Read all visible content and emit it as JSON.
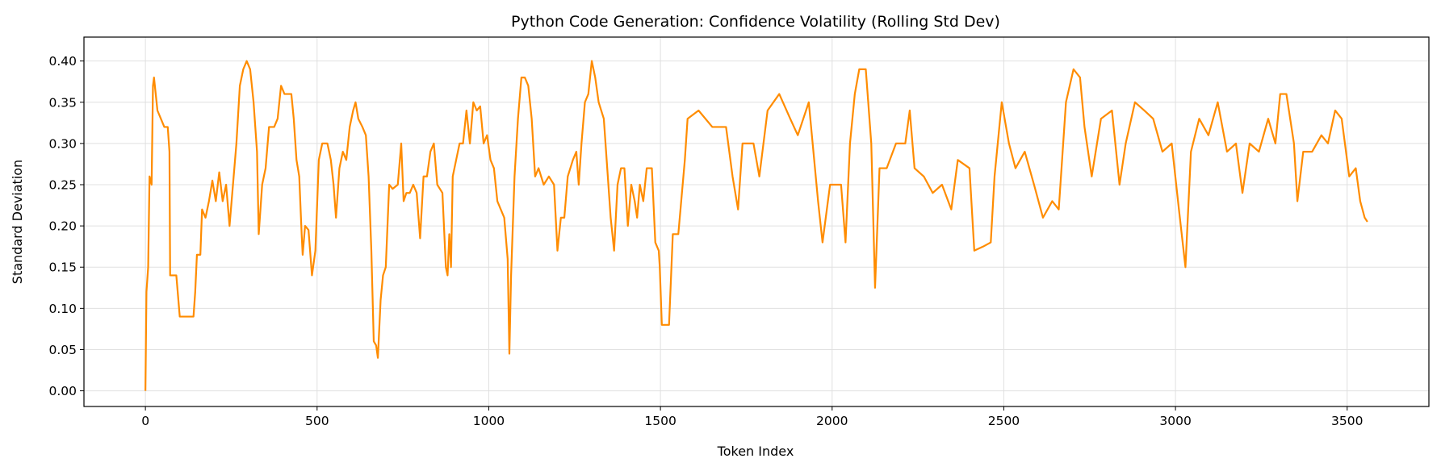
{
  "chart_data": {
    "type": "line",
    "title": "Python Code Generation: Confidence Volatility (Rolling Std Dev)",
    "x_label": "Token Index",
    "y_label": "Standard Deviation",
    "xlim": [
      -179,
      3738
    ],
    "ylim": [
      -0.019,
      0.429
    ],
    "xticks": [
      0,
      500,
      1000,
      1500,
      2000,
      2500,
      3000,
      3500
    ],
    "yticks": [
      {
        "value": 0,
        "label": "0.00"
      },
      {
        "value": 0.05,
        "label": "0.05"
      },
      {
        "value": 0.1,
        "label": "0.10"
      },
      {
        "value": 0.15,
        "label": "0.15"
      },
      {
        "value": 0.2,
        "label": "0.20"
      },
      {
        "value": 0.25,
        "label": "0.25"
      },
      {
        "value": 0.3,
        "label": "0.30"
      },
      {
        "value": 0.35,
        "label": "0.35"
      },
      {
        "value": 0.4,
        "label": "0.40"
      }
    ],
    "grid": true,
    "series": [
      {
        "color": "#ff8c00",
        "x": [
          0,
          3,
          8,
          12,
          18,
          22,
          25,
          35,
          45,
          55,
          65,
          70,
          72,
          90,
          95,
          100,
          140,
          145,
          150,
          160,
          165,
          175,
          185,
          195,
          205,
          215,
          225,
          235,
          245,
          255,
          265,
          275,
          285,
          295,
          305,
          315,
          325,
          330,
          340,
          350,
          360,
          375,
          385,
          395,
          405,
          415,
          425,
          432,
          440,
          448,
          455,
          458,
          465,
          475,
          485,
          495,
          505,
          515,
          530,
          540,
          548,
          555,
          565,
          575,
          585,
          595,
          605,
          612,
          620,
          632,
          642,
          650,
          658,
          665,
          672,
          677,
          685,
          692,
          700,
          710,
          720,
          735,
          745,
          752,
          760,
          770,
          780,
          790,
          800,
          810,
          820,
          830,
          840,
          850,
          865,
          875,
          880,
          885,
          890,
          895,
          905,
          915,
          925,
          935,
          945,
          955,
          965,
          975,
          985,
          995,
          1005,
          1015,
          1025,
          1035,
          1045,
          1055,
          1060,
          1065,
          1075,
          1085,
          1095,
          1105,
          1115,
          1125,
          1135,
          1145,
          1160,
          1175,
          1190,
          1200,
          1210,
          1220,
          1230,
          1245,
          1255,
          1262,
          1270,
          1280,
          1290,
          1300,
          1310,
          1320,
          1335,
          1345,
          1355,
          1365,
          1375,
          1385,
          1395,
          1405,
          1415,
          1425,
          1432,
          1440,
          1450,
          1460,
          1475,
          1485,
          1495,
          1498,
          1504,
          1525,
          1536,
          1552,
          1571,
          1579,
          1611,
          1651,
          1691,
          1710,
          1726,
          1739,
          1771,
          1788,
          1812,
          1846,
          1878,
          1900,
          1932,
          1959,
          1972,
          1994,
          2026,
          2039,
          2052,
          2066,
          2079,
          2098,
          2114,
          2125,
          2138,
          2159,
          2186,
          2213,
          2226,
          2240,
          2267,
          2293,
          2320,
          2347,
          2366,
          2400,
          2414,
          2440,
          2462,
          2473,
          2494,
          2515,
          2534,
          2561,
          2588,
          2614,
          2641,
          2660,
          2681,
          2703,
          2722,
          2735,
          2756,
          2783,
          2815,
          2837,
          2855,
          2882,
          2909,
          2935,
          2962,
          2989,
          3010,
          3029,
          3045,
          3069,
          3096,
          3123,
          3150,
          3176,
          3195,
          3216,
          3243,
          3270,
          3291,
          3305,
          3323,
          3345,
          3355,
          3372,
          3398,
          3425,
          3444,
          3465,
          3484,
          3506,
          3525,
          3538,
          3551,
          3559
        ],
        "values": [
          0,
          0.12,
          0.15,
          0.26,
          0.25,
          0.37,
          0.38,
          0.34,
          0.33,
          0.32,
          0.32,
          0.29,
          0.14,
          0.14,
          0.115,
          0.09,
          0.09,
          0.12,
          0.165,
          0.165,
          0.22,
          0.21,
          0.23,
          0.255,
          0.23,
          0.265,
          0.23,
          0.25,
          0.2,
          0.25,
          0.3,
          0.37,
          0.39,
          0.4,
          0.39,
          0.35,
          0.29,
          0.19,
          0.25,
          0.27,
          0.32,
          0.32,
          0.33,
          0.37,
          0.36,
          0.36,
          0.36,
          0.33,
          0.28,
          0.26,
          0.19,
          0.165,
          0.2,
          0.195,
          0.14,
          0.17,
          0.28,
          0.3,
          0.3,
          0.28,
          0.25,
          0.21,
          0.27,
          0.29,
          0.28,
          0.32,
          0.34,
          0.35,
          0.33,
          0.32,
          0.31,
          0.26,
          0.17,
          0.06,
          0.055,
          0.04,
          0.11,
          0.14,
          0.15,
          0.25,
          0.245,
          0.25,
          0.3,
          0.23,
          0.24,
          0.24,
          0.25,
          0.24,
          0.185,
          0.26,
          0.26,
          0.29,
          0.3,
          0.25,
          0.24,
          0.15,
          0.14,
          0.19,
          0.15,
          0.26,
          0.28,
          0.3,
          0.3,
          0.34,
          0.3,
          0.35,
          0.34,
          0.345,
          0.3,
          0.31,
          0.28,
          0.27,
          0.23,
          0.22,
          0.21,
          0.16,
          0.045,
          0.14,
          0.26,
          0.33,
          0.38,
          0.38,
          0.37,
          0.33,
          0.26,
          0.27,
          0.25,
          0.26,
          0.25,
          0.17,
          0.21,
          0.21,
          0.26,
          0.28,
          0.29,
          0.25,
          0.3,
          0.35,
          0.36,
          0.4,
          0.38,
          0.35,
          0.33,
          0.27,
          0.21,
          0.17,
          0.25,
          0.27,
          0.27,
          0.2,
          0.25,
          0.23,
          0.21,
          0.25,
          0.23,
          0.27,
          0.27,
          0.18,
          0.17,
          0.15,
          0.08,
          0.08,
          0.19,
          0.19,
          0.28,
          0.33,
          0.34,
          0.32,
          0.32,
          0.26,
          0.22,
          0.3,
          0.3,
          0.26,
          0.34,
          0.36,
          0.33,
          0.31,
          0.35,
          0.23,
          0.18,
          0.25,
          0.25,
          0.18,
          0.3,
          0.36,
          0.39,
          0.39,
          0.3,
          0.125,
          0.27,
          0.27,
          0.3,
          0.3,
          0.34,
          0.27,
          0.26,
          0.24,
          0.25,
          0.22,
          0.28,
          0.27,
          0.17,
          0.175,
          0.18,
          0.26,
          0.35,
          0.3,
          0.27,
          0.29,
          0.25,
          0.21,
          0.23,
          0.22,
          0.35,
          0.39,
          0.38,
          0.32,
          0.26,
          0.33,
          0.34,
          0.25,
          0.3,
          0.35,
          0.34,
          0.33,
          0.29,
          0.3,
          0.22,
          0.15,
          0.29,
          0.33,
          0.31,
          0.35,
          0.29,
          0.3,
          0.24,
          0.3,
          0.29,
          0.33,
          0.3,
          0.36,
          0.36,
          0.3,
          0.23,
          0.29,
          0.29,
          0.31,
          0.3,
          0.34,
          0.33,
          0.26,
          0.27,
          0.23,
          0.21,
          0.205
        ]
      }
    ]
  }
}
